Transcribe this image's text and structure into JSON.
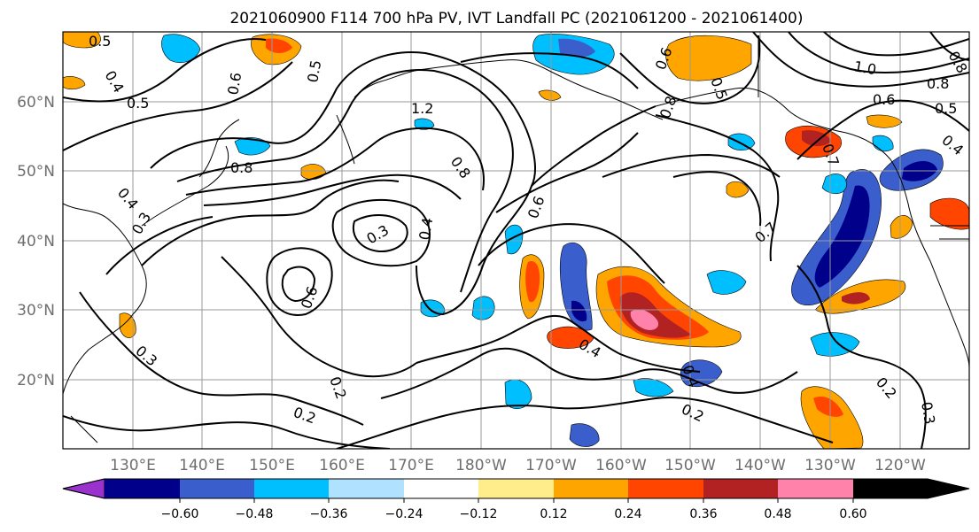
{
  "title": "2021060900 F114 700 hPa PV, IVT Landfall PC (2021061200 - 2021061400)",
  "map": {
    "lat_ticks": [
      "20°N",
      "30°N",
      "40°N",
      "50°N",
      "60°N"
    ],
    "lon_ticks": [
      "130°E",
      "140°E",
      "150°E",
      "160°E",
      "170°E",
      "180°W",
      "170°W",
      "160°W",
      "150°W",
      "140°W",
      "130°W",
      "120°W"
    ]
  },
  "contour_labels": [
    {
      "text": "0.5"
    },
    {
      "text": "0.4"
    },
    {
      "text": "0.5"
    },
    {
      "text": "0.6"
    },
    {
      "text": "0.5"
    },
    {
      "text": "1.2"
    },
    {
      "text": "0.8"
    },
    {
      "text": "0.8"
    },
    {
      "text": "0.4"
    },
    {
      "text": "0.3"
    },
    {
      "text": "0.3"
    },
    {
      "text": "0.4"
    },
    {
      "text": "0.6"
    },
    {
      "text": "0.6"
    },
    {
      "text": "0.3"
    },
    {
      "text": "0.2"
    },
    {
      "text": "0.2"
    },
    {
      "text": "0.4"
    },
    {
      "text": "0.2"
    },
    {
      "text": "0.7"
    },
    {
      "text": "0.8"
    },
    {
      "text": "0.5"
    },
    {
      "text": "1.0"
    },
    {
      "text": "0.8"
    },
    {
      "text": "0.6"
    },
    {
      "text": "0.5"
    },
    {
      "text": "0.4"
    },
    {
      "text": "0.2"
    },
    {
      "text": "0.3"
    },
    {
      "text": "0.8"
    },
    {
      "text": "0.7"
    },
    {
      "text": "0.4"
    },
    {
      "text": "0.6"
    }
  ],
  "colorbar": {
    "colors": [
      "#9a32cd",
      "#00008b",
      "#3a5fcd",
      "#00bfff",
      "#b0e2ff",
      "#ffffff",
      "#ffec8b",
      "#ffa500",
      "#ff4500",
      "#b22222",
      "#ff82ab"
    ],
    "tick_labels": [
      "−0.60",
      "−0.48",
      "−0.36",
      "−0.24",
      "−0.12",
      "0.12",
      "0.24",
      "0.36",
      "0.48",
      "0.60"
    ]
  }
}
